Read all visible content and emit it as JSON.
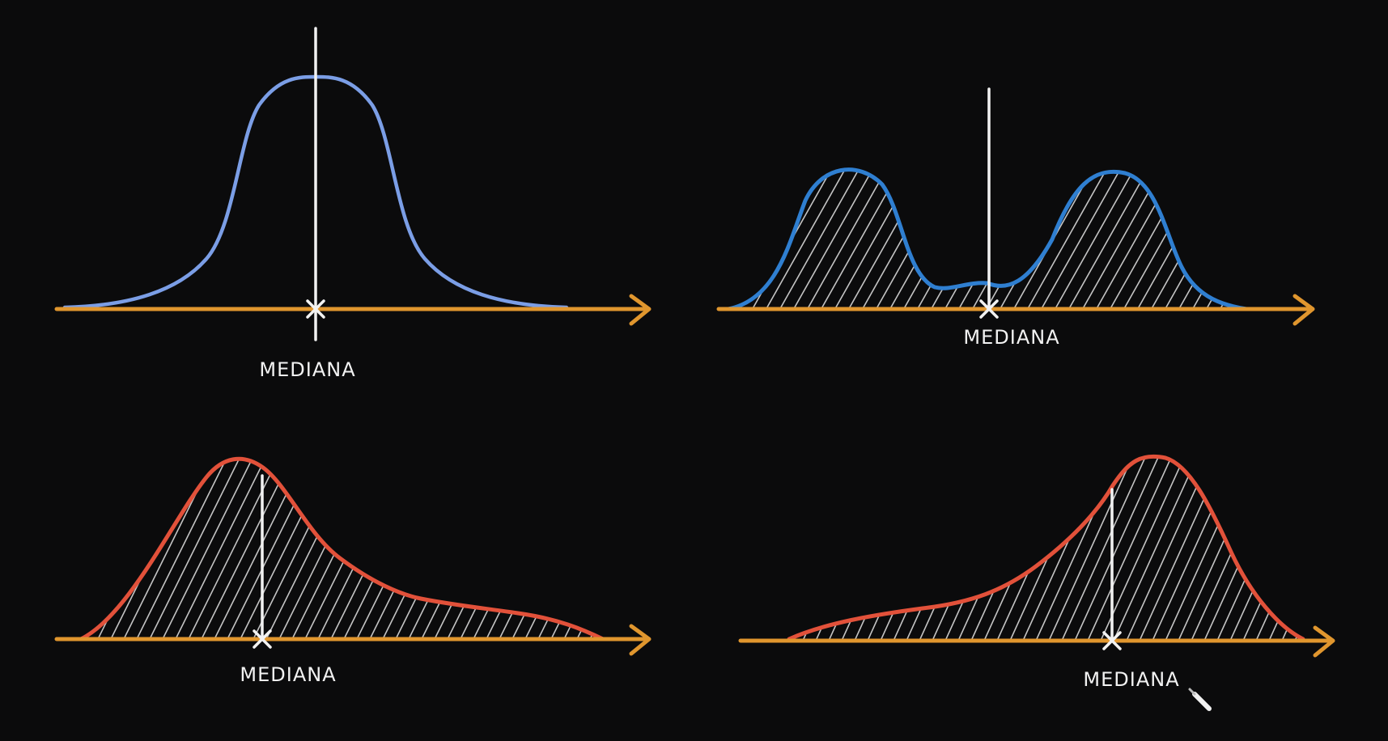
{
  "panels": [
    {
      "id": "top-left",
      "label": "MEDIANA",
      "curve_color": "#7b9ee6",
      "shape": "symmetric-unimodal",
      "hatched": false
    },
    {
      "id": "top-right",
      "label": "MEDIANA",
      "curve_color": "#2f7fd1",
      "shape": "bimodal",
      "hatched": true
    },
    {
      "id": "bottom-left",
      "label": "MEDIANA",
      "curve_color": "#e2513a",
      "shape": "right-skewed",
      "hatched": true
    },
    {
      "id": "bottom-right",
      "label": "MEDIANA",
      "curve_color": "#e2513a",
      "shape": "left-skewed",
      "hatched": true
    }
  ],
  "colors": {
    "background": "#0b0b0c",
    "axis": "#e0962e",
    "median_line": "#f2f2f2",
    "hatch": "#e6e6e6"
  },
  "icons": [
    "arrow-head-icon",
    "x-marker-icon",
    "pen-cursor-icon"
  ]
}
